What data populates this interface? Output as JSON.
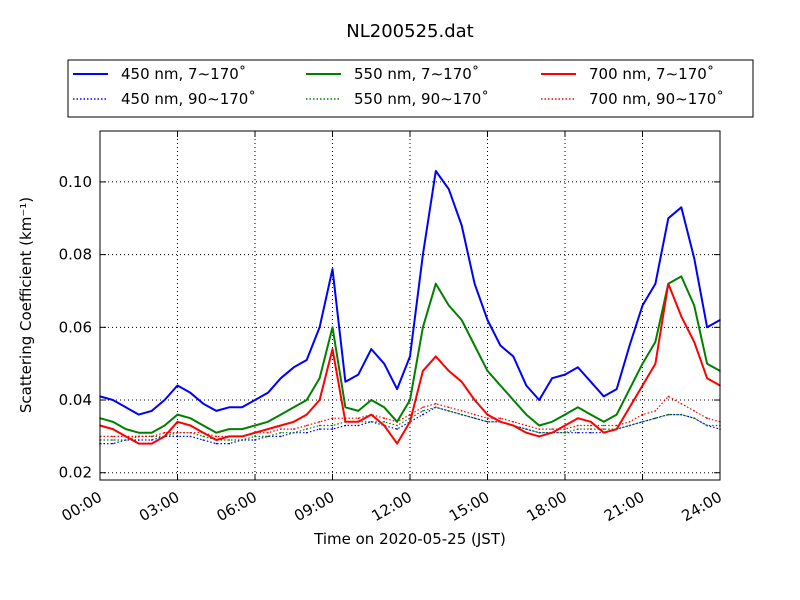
{
  "chart_data": {
    "type": "line",
    "title": "NL200525.dat",
    "xlabel": "Time on 2020-05-25 (JST)",
    "ylabel": "Scattering Coefficient (km⁻¹)",
    "xlim": [
      0,
      24
    ],
    "ylim": [
      0.018,
      0.114
    ],
    "x_ticks": [
      {
        "value": 0,
        "label": "00:00"
      },
      {
        "value": 3,
        "label": "03:00"
      },
      {
        "value": 6,
        "label": "06:00"
      },
      {
        "value": 9,
        "label": "09:00"
      },
      {
        "value": 12,
        "label": "12:00"
      },
      {
        "value": 15,
        "label": "15:00"
      },
      {
        "value": 18,
        "label": "18:00"
      },
      {
        "value": 21,
        "label": "21:00"
      },
      {
        "value": 24,
        "label": "24:00"
      }
    ],
    "y_ticks": [
      {
        "value": 0.02,
        "label": "0.02"
      },
      {
        "value": 0.04,
        "label": "0.04"
      },
      {
        "value": 0.06,
        "label": "0.06"
      },
      {
        "value": 0.08,
        "label": "0.08"
      },
      {
        "value": 0.1,
        "label": "0.10"
      }
    ],
    "grid": true,
    "legend_position": "top",
    "x": [
      0,
      0.5,
      1,
      1.5,
      2,
      2.5,
      3,
      3.5,
      4,
      4.5,
      5,
      5.5,
      6,
      6.5,
      7,
      7.5,
      8,
      8.5,
      9,
      9.5,
      10,
      10.5,
      11,
      11.5,
      12,
      12.5,
      13,
      13.5,
      14,
      14.5,
      15,
      15.5,
      16,
      16.5,
      17,
      17.5,
      18,
      18.5,
      19,
      19.5,
      20,
      20.5,
      21,
      21.5,
      22,
      22.5,
      23,
      23.5,
      24
    ],
    "series": [
      {
        "name": "450 nm, 7∼170˚",
        "color": "#0000ff",
        "style": "solid",
        "values": [
          0.041,
          0.04,
          0.038,
          0.036,
          0.037,
          0.04,
          0.044,
          0.042,
          0.039,
          0.037,
          0.038,
          0.038,
          0.04,
          0.042,
          0.046,
          0.049,
          0.051,
          0.06,
          0.076,
          0.045,
          0.047,
          0.054,
          0.05,
          0.043,
          0.052,
          0.08,
          0.103,
          0.098,
          0.088,
          0.072,
          0.062,
          0.055,
          0.052,
          0.044,
          0.04,
          0.046,
          0.047,
          0.049,
          0.045,
          0.041,
          0.043,
          0.055,
          0.066,
          0.072,
          0.09,
          0.093,
          0.079,
          0.06,
          0.062
        ]
      },
      {
        "name": "450 nm, 90∼170˚",
        "color": "#0000ff",
        "style": "dotted",
        "values": [
          0.028,
          0.028,
          0.029,
          0.029,
          0.029,
          0.03,
          0.03,
          0.03,
          0.029,
          0.028,
          0.028,
          0.029,
          0.029,
          0.03,
          0.03,
          0.031,
          0.031,
          0.032,
          0.032,
          0.033,
          0.033,
          0.034,
          0.033,
          0.032,
          0.034,
          0.036,
          0.038,
          0.037,
          0.036,
          0.035,
          0.034,
          0.034,
          0.033,
          0.032,
          0.031,
          0.031,
          0.031,
          0.031,
          0.031,
          0.031,
          0.032,
          0.033,
          0.034,
          0.035,
          0.036,
          0.036,
          0.035,
          0.033,
          0.032
        ]
      },
      {
        "name": "550 nm, 7∼170˚",
        "color": "#008000",
        "style": "solid",
        "values": [
          0.035,
          0.034,
          0.032,
          0.031,
          0.031,
          0.033,
          0.036,
          0.035,
          0.033,
          0.031,
          0.032,
          0.032,
          0.033,
          0.034,
          0.036,
          0.038,
          0.04,
          0.046,
          0.06,
          0.038,
          0.037,
          0.04,
          0.038,
          0.034,
          0.04,
          0.06,
          0.072,
          0.066,
          0.062,
          0.055,
          0.048,
          0.044,
          0.04,
          0.036,
          0.033,
          0.034,
          0.036,
          0.038,
          0.036,
          0.034,
          0.036,
          0.043,
          0.05,
          0.056,
          0.072,
          0.074,
          0.066,
          0.05,
          0.048
        ]
      },
      {
        "name": "550 nm, 90∼170˚",
        "color": "#008000",
        "style": "dotted",
        "values": [
          0.029,
          0.029,
          0.029,
          0.03,
          0.03,
          0.03,
          0.031,
          0.031,
          0.03,
          0.029,
          0.029,
          0.029,
          0.03,
          0.03,
          0.031,
          0.031,
          0.032,
          0.033,
          0.033,
          0.034,
          0.034,
          0.034,
          0.034,
          0.033,
          0.035,
          0.037,
          0.038,
          0.037,
          0.036,
          0.035,
          0.034,
          0.034,
          0.033,
          0.032,
          0.031,
          0.031,
          0.031,
          0.032,
          0.032,
          0.032,
          0.032,
          0.033,
          0.034,
          0.035,
          0.036,
          0.036,
          0.035,
          0.033,
          0.033
        ]
      },
      {
        "name": "700 nm, 7∼170˚",
        "color": "#ff0000",
        "style": "solid",
        "values": [
          0.033,
          0.032,
          0.03,
          0.028,
          0.028,
          0.03,
          0.034,
          0.033,
          0.031,
          0.029,
          0.03,
          0.03,
          0.031,
          0.032,
          0.033,
          0.034,
          0.036,
          0.04,
          0.054,
          0.034,
          0.034,
          0.036,
          0.033,
          0.028,
          0.034,
          0.048,
          0.052,
          0.048,
          0.045,
          0.04,
          0.036,
          0.034,
          0.033,
          0.031,
          0.03,
          0.031,
          0.033,
          0.035,
          0.034,
          0.031,
          0.032,
          0.038,
          0.044,
          0.05,
          0.072,
          0.063,
          0.056,
          0.046,
          0.044
        ]
      },
      {
        "name": "700 nm, 90∼170˚",
        "color": "#ff0000",
        "style": "dotted",
        "values": [
          0.03,
          0.03,
          0.03,
          0.03,
          0.03,
          0.031,
          0.031,
          0.031,
          0.031,
          0.03,
          0.03,
          0.03,
          0.031,
          0.031,
          0.032,
          0.032,
          0.033,
          0.034,
          0.035,
          0.035,
          0.035,
          0.036,
          0.035,
          0.034,
          0.036,
          0.038,
          0.039,
          0.038,
          0.037,
          0.036,
          0.035,
          0.035,
          0.034,
          0.033,
          0.032,
          0.032,
          0.032,
          0.033,
          0.033,
          0.033,
          0.033,
          0.034,
          0.036,
          0.037,
          0.041,
          0.039,
          0.037,
          0.035,
          0.034
        ]
      }
    ]
  }
}
